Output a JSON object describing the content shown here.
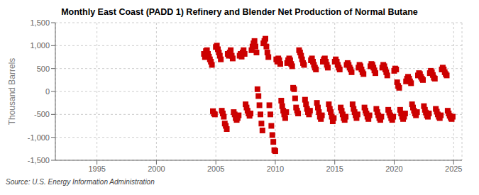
{
  "chart_data": {
    "type": "scatter",
    "title": "Monthly East Coast (PADD 1) Refinery and Blender Net Production of Normal Butane",
    "ylabel": "Thousand Barrels",
    "annotation": "Source: U.S. Energy Information Administration",
    "color": "#cc0000",
    "marker": "square",
    "grid": true,
    "xlim": [
      1991.5,
      2025.7
    ],
    "xticks": [
      1995,
      2000,
      2005,
      2010,
      2015,
      2020,
      2025
    ],
    "ylim": [
      -1500,
      1500
    ],
    "yticks": [
      {
        "value": -1500,
        "label": "-1,500"
      },
      {
        "value": -1000,
        "label": "-1,000"
      },
      -500,
      0,
      500,
      {
        "value": 1000,
        "label": "1,000"
      },
      {
        "value": 1500,
        "label": "1,500"
      }
    ],
    "x": [
      2004.0,
      2004.083,
      2004.167,
      2004.25,
      2004.333,
      2004.417,
      2004.5,
      2004.583,
      2004.667,
      2004.75,
      2004.833,
      2004.917,
      2005.0,
      2005.083,
      2005.167,
      2005.25,
      2005.333,
      2005.417,
      2005.5,
      2005.583,
      2005.667,
      2005.75,
      2005.833,
      2005.917,
      2006.0,
      2006.083,
      2006.167,
      2006.25,
      2006.333,
      2006.417,
      2006.5,
      2006.583,
      2006.667,
      2006.75,
      2006.833,
      2006.917,
      2007.0,
      2007.083,
      2007.167,
      2007.25,
      2007.333,
      2007.417,
      2007.5,
      2007.583,
      2007.667,
      2007.75,
      2007.833,
      2007.917,
      2008.0,
      2008.083,
      2008.167,
      2008.25,
      2008.333,
      2008.417,
      2008.5,
      2008.583,
      2008.667,
      2008.75,
      2008.833,
      2008.917,
      2009.0,
      2009.083,
      2009.167,
      2009.25,
      2009.333,
      2009.417,
      2009.5,
      2009.583,
      2009.667,
      2009.75,
      2009.833,
      2009.917,
      2010.0,
      2010.083,
      2010.167,
      2010.25,
      2010.333,
      2010.417,
      2010.5,
      2010.583,
      2010.667,
      2010.75,
      2010.833,
      2010.917,
      2011.0,
      2011.083,
      2011.167,
      2011.25,
      2011.333,
      2011.417,
      2011.5,
      2011.583,
      2011.667,
      2011.75,
      2011.833,
      2011.917,
      2012.0,
      2012.083,
      2012.167,
      2012.25,
      2012.333,
      2012.417,
      2012.5,
      2012.583,
      2012.667,
      2012.75,
      2012.833,
      2012.917,
      2013.0,
      2013.083,
      2013.167,
      2013.25,
      2013.333,
      2013.417,
      2013.5,
      2013.583,
      2013.667,
      2013.75,
      2013.833,
      2013.917,
      2014.0,
      2014.083,
      2014.167,
      2014.25,
      2014.333,
      2014.417,
      2014.5,
      2014.583,
      2014.667,
      2014.75,
      2014.833,
      2014.917,
      2015.0,
      2015.083,
      2015.167,
      2015.25,
      2015.333,
      2015.417,
      2015.5,
      2015.583,
      2015.667,
      2015.75,
      2015.833,
      2015.917,
      2016.0,
      2016.083,
      2016.167,
      2016.25,
      2016.333,
      2016.417,
      2016.5,
      2016.583,
      2016.667,
      2016.75,
      2016.833,
      2016.917,
      2017.0,
      2017.083,
      2017.167,
      2017.25,
      2017.333,
      2017.417,
      2017.5,
      2017.583,
      2017.667,
      2017.75,
      2017.833,
      2017.917,
      2018.0,
      2018.083,
      2018.167,
      2018.25,
      2018.333,
      2018.417,
      2018.5,
      2018.583,
      2018.667,
      2018.75,
      2018.833,
      2018.917,
      2019.0,
      2019.083,
      2019.167,
      2019.25,
      2019.333,
      2019.417,
      2019.5,
      2019.583,
      2019.667,
      2019.75,
      2019.833,
      2019.917,
      2020.0,
      2020.083,
      2020.167,
      2020.25,
      2020.333,
      2020.417,
      2020.5,
      2020.583,
      2020.667,
      2020.75,
      2020.833,
      2020.917,
      2021.0,
      2021.083,
      2021.167,
      2021.25,
      2021.333,
      2021.417,
      2021.5,
      2021.583,
      2021.667,
      2021.75,
      2021.833,
      2021.917,
      2022.0,
      2022.083,
      2022.167,
      2022.25,
      2022.333,
      2022.417,
      2022.5,
      2022.583,
      2022.667,
      2022.75,
      2022.833,
      2022.917,
      2023.0,
      2023.083,
      2023.167,
      2023.25,
      2023.333,
      2023.417,
      2023.5,
      2023.583,
      2023.667,
      2023.75,
      2023.833,
      2023.917,
      2024.0,
      2024.083,
      2024.167,
      2024.25,
      2024.333,
      2024.417,
      2024.5,
      2024.583,
      2024.667,
      2024.75,
      2024.833,
      2024.917
    ],
    "values": [
      820,
      750,
      880,
      900,
      820,
      760,
      700,
      650,
      580,
      -430,
      -480,
      -500,
      970,
      1000,
      920,
      850,
      780,
      700,
      -420,
      -480,
      -550,
      -700,
      -750,
      -820,
      820,
      780,
      850,
      900,
      780,
      720,
      -450,
      -500,
      -580,
      -620,
      -580,
      -520,
      780,
      820,
      760,
      850,
      900,
      820,
      -280,
      -350,
      -420,
      -480,
      -530,
      -480,
      900,
      980,
      1050,
      1100,
      980,
      850,
      50,
      -100,
      -300,
      -500,
      -700,
      -850,
      1050,
      1100,
      1150,
      980,
      850,
      750,
      -300,
      -500,
      -750,
      -950,
      -1100,
      -1280,
      -1300,
      700,
      650,
      720,
      680,
      600,
      -200,
      -320,
      -420,
      -500,
      -580,
      -450,
      620,
      680,
      720,
      680,
      600,
      550,
      80,
      50,
      -150,
      -350,
      -420,
      -480,
      900,
      850,
      780,
      700,
      620,
      580,
      -180,
      -280,
      -380,
      -450,
      -500,
      -420,
      680,
      720,
      650,
      580,
      520,
      480,
      -250,
      -350,
      -450,
      -550,
      -600,
      -520,
      650,
      700,
      720,
      650,
      580,
      520,
      -280,
      -380,
      -450,
      -550,
      -650,
      -580,
      650,
      700,
      650,
      580,
      520,
      480,
      -350,
      -420,
      -500,
      -580,
      -620,
      -550,
      580,
      620,
      580,
      520,
      480,
      420,
      -280,
      -380,
      -450,
      -520,
      -580,
      -500,
      520,
      580,
      550,
      480,
      420,
      380,
      -350,
      -420,
      -480,
      -550,
      -600,
      -520,
      550,
      600,
      580,
      520,
      460,
      400,
      -380,
      -450,
      -520,
      -580,
      -620,
      -550,
      520,
      580,
      550,
      480,
      420,
      350,
      -400,
      -460,
      -520,
      -580,
      -620,
      -550,
      450,
      500,
      480,
      200,
      120,
      80,
      -400,
      -480,
      -550,
      -600,
      -550,
      -480,
      220,
      280,
      320,
      280,
      220,
      180,
      -280,
      -350,
      -420,
      -480,
      -520,
      -450,
      350,
      400,
      380,
      320,
      280,
      250,
      -320,
      -400,
      -460,
      -520,
      -550,
      -480,
      400,
      450,
      420,
      360,
      300,
      280,
      -380,
      -440,
      -500,
      -550,
      -580,
      -520,
      480,
      520,
      480,
      420,
      380,
      350,
      -420,
      -480,
      -530,
      -570,
      -600,
      -550
    ]
  }
}
